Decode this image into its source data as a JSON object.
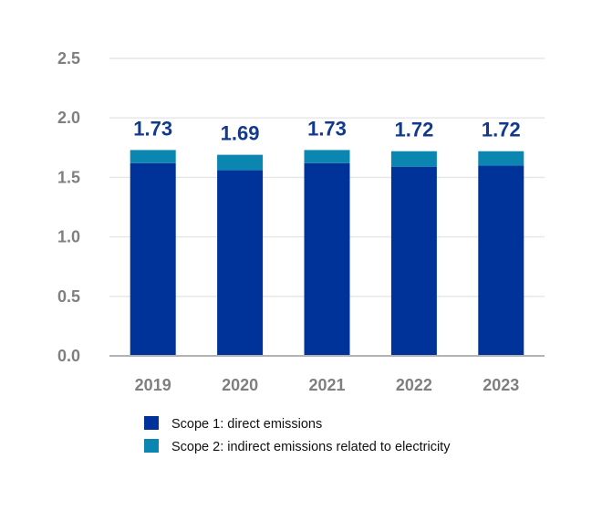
{
  "chart_data": {
    "type": "bar",
    "stacked": true,
    "title": "",
    "xlabel": "",
    "ylabel": "",
    "categories": [
      "2019",
      "2020",
      "2021",
      "2022",
      "2023"
    ],
    "series": [
      {
        "name": "Scope 1: direct emissions",
        "color": "#003399",
        "values": [
          1.62,
          1.56,
          1.62,
          1.59,
          1.6
        ]
      },
      {
        "name": "Scope 2: indirect emissions related to electricity",
        "color": "#0a86b0",
        "values": [
          0.11,
          0.13,
          0.11,
          0.13,
          0.12
        ]
      }
    ],
    "totals": [
      "1.73",
      "1.69",
      "1.73",
      "1.72",
      "1.72"
    ],
    "ylim": [
      0,
      2.5
    ],
    "yticks": [
      "0.0",
      "0.5",
      "1.0",
      "1.5",
      "2.0",
      "2.5"
    ],
    "grid": true,
    "legend_position": "bottom-left"
  }
}
